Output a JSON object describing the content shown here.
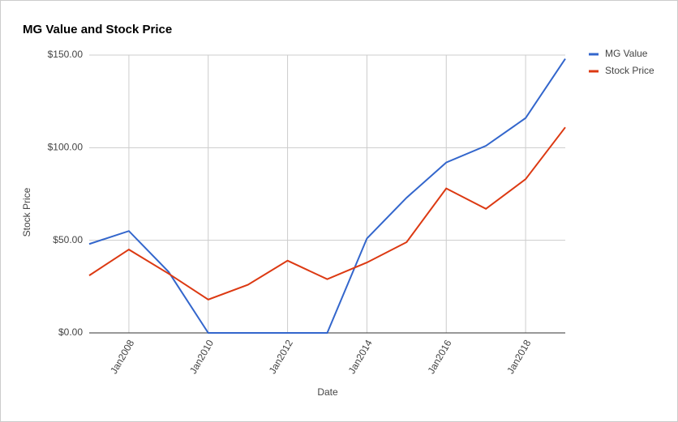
{
  "chart_data": {
    "type": "line",
    "title": "MG Value and Stock Price",
    "x_label": "Date",
    "y_label": "Stock Price",
    "x": [
      2007,
      2008,
      2009,
      2010,
      2011,
      2012,
      2013,
      2014,
      2015,
      2016,
      2017,
      2018,
      2019
    ],
    "series": [
      {
        "name": "MG Value",
        "color": "#3366cc",
        "values": [
          48,
          55,
          33,
          0,
          0,
          0,
          0,
          51,
          73,
          92,
          101,
          116,
          148
        ]
      },
      {
        "name": "Stock Price",
        "color": "#dc3912",
        "values": [
          31,
          45,
          32,
          18,
          26,
          39,
          29,
          38,
          49,
          78,
          67,
          83,
          111
        ]
      }
    ],
    "xlim": [
      2007,
      2019
    ],
    "xticks": [
      {
        "value": 2008,
        "label": "Jan2008"
      },
      {
        "value": 2010,
        "label": "Jan2010"
      },
      {
        "value": 2012,
        "label": "Jan2012"
      },
      {
        "value": 2014,
        "label": "Jan2014"
      },
      {
        "value": 2016,
        "label": "Jan2016"
      },
      {
        "value": 2018,
        "label": "Jan2018"
      }
    ],
    "ylim": [
      0,
      150
    ],
    "yticks": [
      {
        "value": 0,
        "label": "$0.00"
      },
      {
        "value": 50,
        "label": "$50.00"
      },
      {
        "value": 100,
        "label": "$100.00"
      },
      {
        "value": 150,
        "label": "$150.00"
      }
    ],
    "grid": true,
    "legend": "right"
  }
}
